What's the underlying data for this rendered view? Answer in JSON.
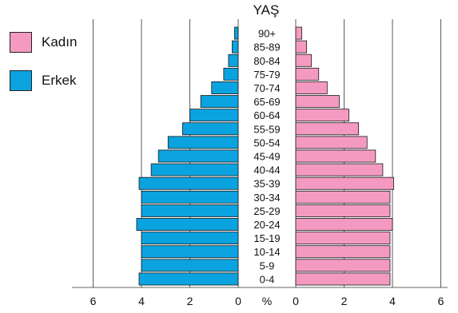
{
  "chart_data": {
    "type": "bar",
    "orientation": "horizontal-population-pyramid",
    "title": "YAŞ",
    "categories": [
      "0-4",
      "5-9",
      "10-14",
      "15-19",
      "20-24",
      "25-29",
      "30-34",
      "35-39",
      "40-44",
      "45-49",
      "50-54",
      "55-59",
      "60-64",
      "65-69",
      "70-74",
      "75-79",
      "80-84",
      "85-89",
      "90+"
    ],
    "series": [
      {
        "name": "Erkek",
        "side": "left",
        "color": "#0aa3e0",
        "values": [
          4.1,
          4.0,
          4.0,
          4.0,
          4.2,
          4.0,
          4.0,
          4.1,
          3.6,
          3.3,
          2.9,
          2.3,
          2.0,
          1.55,
          1.1,
          0.6,
          0.4,
          0.25,
          0.15
        ]
      },
      {
        "name": "Kadın",
        "side": "right",
        "color": "#f49ac1",
        "values": [
          3.9,
          3.9,
          3.9,
          3.9,
          4.0,
          3.9,
          3.9,
          4.05,
          3.6,
          3.3,
          2.95,
          2.6,
          2.2,
          1.8,
          1.3,
          0.95,
          0.65,
          0.45,
          0.25
        ]
      }
    ],
    "xlim": [
      0,
      6
    ],
    "xticks_left": [
      "6",
      "4",
      "2",
      "0"
    ],
    "xticks_right": [
      "0",
      "2",
      "4",
      "6"
    ],
    "xunit": "%",
    "grid": true,
    "legend": {
      "placement": "top-left"
    }
  }
}
